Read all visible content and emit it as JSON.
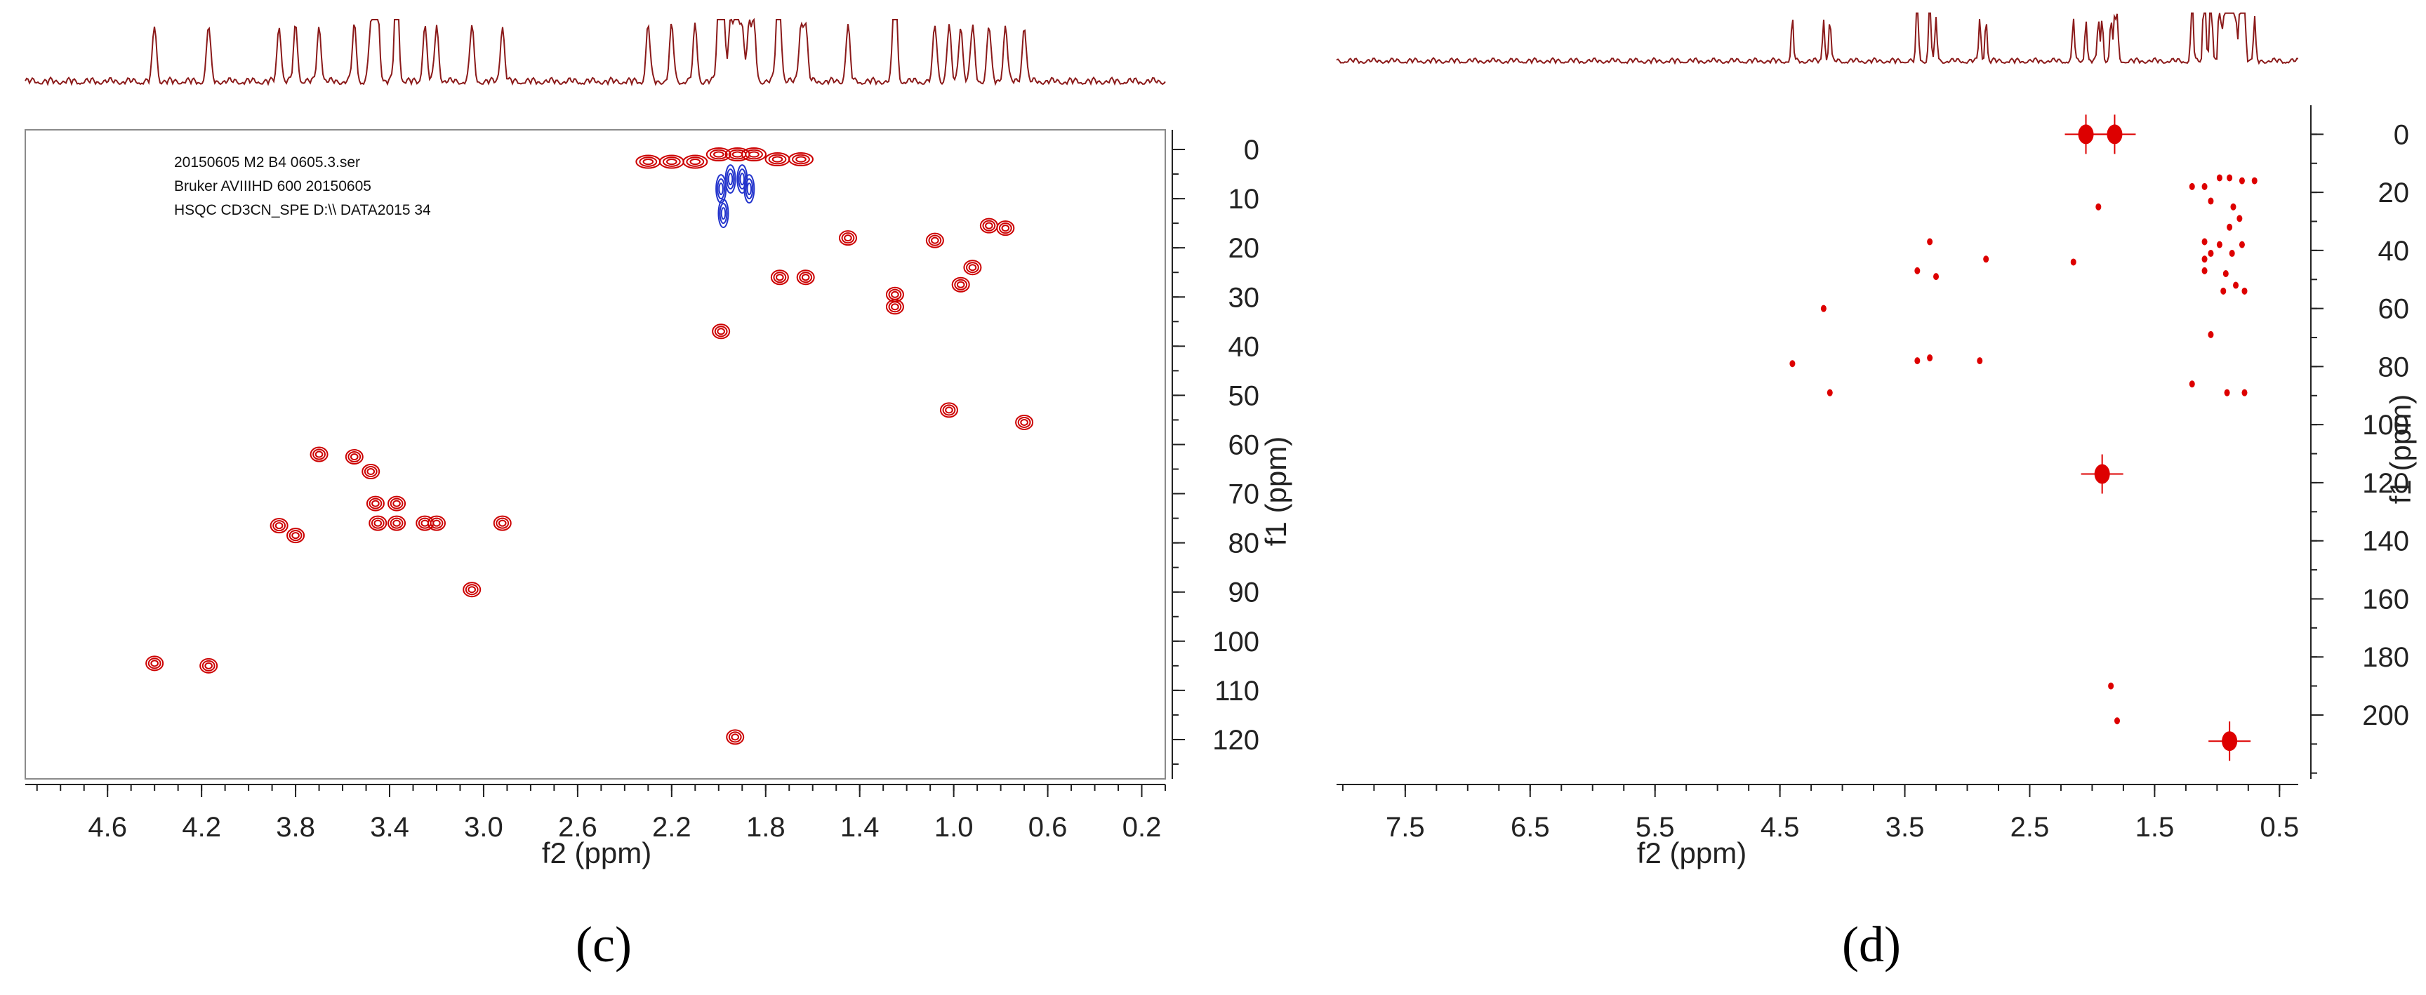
{
  "chart_data": [
    {
      "type": "scatter",
      "subtype": "2D NMR HSQC contour plot",
      "panel_label": "(c)",
      "xlabel": "f2 (ppm)",
      "ylabel": "f1 (ppm)",
      "xlim": [
        4.95,
        0.1
      ],
      "ylim": [
        -4,
        128
      ],
      "x_ticks": [
        "4.6",
        "4.2",
        "3.8",
        "3.4",
        "3.0",
        "2.6",
        "2.2",
        "1.8",
        "1.4",
        "1.0",
        "0.6",
        "0.2"
      ],
      "y_ticks": [
        "0",
        "10",
        "20",
        "30",
        "40",
        "50",
        "60",
        "70",
        "80",
        "90",
        "100",
        "110",
        "120"
      ],
      "annotations": [
        "20150605  M2 B4 0605.3.ser",
        "Bruker AVIIIHD 600 20150605",
        "HSQC CD3CN_SPE D:\\\\ DATA2015 34"
      ],
      "grid": false,
      "colors": {
        "positive": "#cc0000",
        "negative": "#2233cc",
        "projection": "#8b1a1a"
      },
      "series": [
        {
          "name": "positive",
          "points": [
            {
              "x": 4.4,
              "y": 104.5
            },
            {
              "x": 4.17,
              "y": 105.0
            },
            {
              "x": 3.87,
              "y": 76.5
            },
            {
              "x": 3.8,
              "y": 78.5
            },
            {
              "x": 3.7,
              "y": 62.0
            },
            {
              "x": 3.55,
              "y": 62.5
            },
            {
              "x": 3.48,
              "y": 65.5
            },
            {
              "x": 3.46,
              "y": 72.0
            },
            {
              "x": 3.37,
              "y": 72.0
            },
            {
              "x": 3.45,
              "y": 76.0
            },
            {
              "x": 3.37,
              "y": 76.0
            },
            {
              "x": 3.25,
              "y": 76.0
            },
            {
              "x": 3.2,
              "y": 76.0
            },
            {
              "x": 3.05,
              "y": 89.5
            },
            {
              "x": 2.92,
              "y": 76.0
            },
            {
              "x": 1.93,
              "y": 119.5
            },
            {
              "x": 1.99,
              "y": 37.0
            },
            {
              "x": 1.74,
              "y": 26.0
            },
            {
              "x": 1.63,
              "y": 26.0
            },
            {
              "x": 1.45,
              "y": 18.0
            },
            {
              "x": 1.25,
              "y": 29.5
            },
            {
              "x": 1.25,
              "y": 32.0
            },
            {
              "x": 1.08,
              "y": 18.5
            },
            {
              "x": 1.02,
              "y": 53.0
            },
            {
              "x": 0.97,
              "y": 27.5
            },
            {
              "x": 0.92,
              "y": 24.0
            },
            {
              "x": 0.85,
              "y": 15.5
            },
            {
              "x": 0.78,
              "y": 16.0
            },
            {
              "x": 0.7,
              "y": 55.5
            },
            {
              "x": 2.3,
              "y": 2.5
            },
            {
              "x": 2.2,
              "y": 2.5
            },
            {
              "x": 2.1,
              "y": 2.5
            },
            {
              "x": 2.0,
              "y": 1.0
            },
            {
              "x": 1.92,
              "y": 1.0
            },
            {
              "x": 1.85,
              "y": 1.0
            },
            {
              "x": 1.75,
              "y": 2.0
            },
            {
              "x": 1.65,
              "y": 2.0
            }
          ]
        },
        {
          "name": "negative",
          "points": [
            {
              "x": 1.99,
              "y": 8.0
            },
            {
              "x": 1.98,
              "y": 13.0
            },
            {
              "x": 1.9,
              "y": 6.0
            },
            {
              "x": 1.87,
              "y": 8.0
            },
            {
              "x": 1.95,
              "y": 6.0
            }
          ]
        }
      ]
    },
    {
      "type": "scatter",
      "subtype": "2D NMR HMBC contour plot",
      "panel_label": "(d)",
      "xlabel": "f2 (ppm)",
      "ylabel": "f1 (ppm)",
      "xlim": [
        8.05,
        0.35
      ],
      "ylim": [
        -10,
        222
      ],
      "x_ticks": [
        "7.5",
        "6.5",
        "5.5",
        "4.5",
        "3.5",
        "2.5",
        "1.5",
        "0.5"
      ],
      "y_ticks": [
        "0",
        "20",
        "40",
        "60",
        "80",
        "100",
        "120",
        "140",
        "160",
        "180",
        "200"
      ],
      "grid": false,
      "colors": {
        "positive": "#dd0000",
        "projection": "#8b1a1a"
      },
      "series": [
        {
          "name": "positive",
          "points": [
            {
              "x": 2.05,
              "y": 0
            },
            {
              "x": 1.82,
              "y": 0
            },
            {
              "x": 1.92,
              "y": 117
            },
            {
              "x": 0.9,
              "y": 209
            },
            {
              "x": 3.4,
              "y": 47
            },
            {
              "x": 3.4,
              "y": 78
            },
            {
              "x": 3.3,
              "y": 77
            },
            {
              "x": 2.9,
              "y": 78
            },
            {
              "x": 4.4,
              "y": 79
            },
            {
              "x": 2.15,
              "y": 44
            },
            {
              "x": 1.2,
              "y": 86
            },
            {
              "x": 0.92,
              "y": 89
            },
            {
              "x": 0.78,
              "y": 89
            },
            {
              "x": 1.2,
              "y": 18
            },
            {
              "x": 1.1,
              "y": 18
            },
            {
              "x": 0.98,
              "y": 15
            },
            {
              "x": 0.9,
              "y": 15
            },
            {
              "x": 0.8,
              "y": 16
            },
            {
              "x": 0.7,
              "y": 16
            },
            {
              "x": 1.1,
              "y": 37
            },
            {
              "x": 1.05,
              "y": 41
            },
            {
              "x": 1.1,
              "y": 43
            },
            {
              "x": 0.98,
              "y": 38
            },
            {
              "x": 0.9,
              "y": 32
            },
            {
              "x": 0.82,
              "y": 29
            },
            {
              "x": 0.87,
              "y": 25
            },
            {
              "x": 0.88,
              "y": 41
            },
            {
              "x": 0.8,
              "y": 38
            },
            {
              "x": 0.93,
              "y": 48
            },
            {
              "x": 0.85,
              "y": 52
            },
            {
              "x": 0.78,
              "y": 54
            },
            {
              "x": 0.95,
              "y": 54
            },
            {
              "x": 1.1,
              "y": 47
            },
            {
              "x": 1.05,
              "y": 23
            },
            {
              "x": 1.05,
              "y": 69
            },
            {
              "x": 3.3,
              "y": 37
            },
            {
              "x": 3.25,
              "y": 49
            },
            {
              "x": 2.85,
              "y": 43
            },
            {
              "x": 4.15,
              "y": 60
            },
            {
              "x": 4.1,
              "y": 89
            },
            {
              "x": 1.85,
              "y": 190
            },
            {
              "x": 1.8,
              "y": 202
            },
            {
              "x": 1.95,
              "y": 25
            }
          ]
        }
      ]
    }
  ]
}
